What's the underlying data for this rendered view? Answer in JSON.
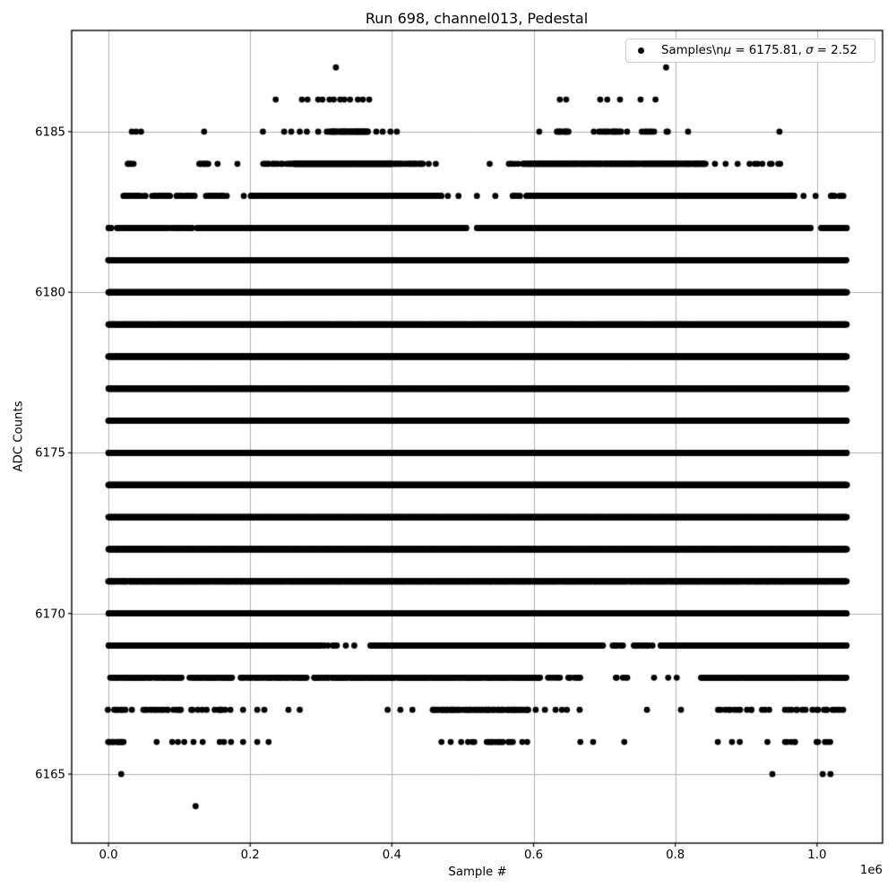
{
  "chart_data": {
    "type": "scatter",
    "title": "Run 698, channel013, Pedestal",
    "xlabel": "Sample #",
    "ylabel": "ADC Counts",
    "offset_text": "1e6",
    "legend": {
      "label": "Samples\\nμ = 6175.81, σ = 2.52",
      "marker": "point",
      "marker_color": "#000000",
      "position": "upper right"
    },
    "stats": {
      "mu": 6175.81,
      "sigma": 2.52
    },
    "marker_color": "#000000",
    "grid": true,
    "grid_color": "#b0b0b0",
    "xlim": [
      -51900,
      1092500
    ],
    "ylim": [
      6162.85,
      6188.15
    ],
    "x_data_range": [
      0,
      1042000
    ],
    "xticks": [
      {
        "label": "0.0",
        "value": 0
      },
      {
        "label": "0.2",
        "value": 200000
      },
      {
        "label": "0.4",
        "value": 400000
      },
      {
        "label": "0.6",
        "value": 600000
      },
      {
        "label": "0.8",
        "value": 800000
      },
      {
        "label": "1.0",
        "value": 1000000
      }
    ],
    "yticks": [
      {
        "label": "6165",
        "value": 6165
      },
      {
        "label": "6170",
        "value": 6170
      },
      {
        "label": "6175",
        "value": 6175
      },
      {
        "label": "6180",
        "value": 6180
      },
      {
        "label": "6185",
        "value": 6185
      }
    ],
    "bands_format": "ADC-count rows of ~1M samples; segments=[x_start,x_end,density 0-1], points=isolated sample x positions",
    "bands": [
      {
        "adc": 6187,
        "points": [
          321000,
          787000
        ]
      },
      {
        "adc": 6186,
        "points": [
          236000,
          273000,
          281000,
          296000,
          302000,
          312000,
          318000,
          327000,
          333000,
          341000,
          352000,
          359000,
          368000,
          637000,
          646000,
          694000,
          704000,
          722000,
          751000,
          772000
        ]
      },
      {
        "adc": 6185,
        "segments": [
          [
            308000,
            368000,
            0.85
          ],
          [
            633000,
            650000,
            0.7
          ],
          [
            693000,
            735000,
            0.7
          ],
          [
            753000,
            774000,
            0.7
          ],
          [
            782000,
            792000,
            0.7
          ]
        ],
        "points": [
          33000,
          39000,
          46000,
          135000,
          218000,
          248000,
          258000,
          270000,
          280000,
          296000,
          378000,
          387000,
          398000,
          407000,
          608000,
          685000,
          818000,
          947000
        ]
      },
      {
        "adc": 6184,
        "segments": [
          [
            27000,
            35000,
            0.8
          ],
          [
            128000,
            141000,
            0.8
          ],
          [
            218000,
            262000,
            0.7
          ],
          [
            262000,
            400000,
            1
          ],
          [
            400000,
            445000,
            0.8
          ],
          [
            565000,
            579000,
            0.55
          ],
          [
            585000,
            843000,
            0.92
          ],
          [
            903000,
            924000,
            0.6
          ],
          [
            934000,
            951000,
            0.65
          ]
        ],
        "points": [
          154000,
          182000,
          452000,
          462000,
          538000,
          856000,
          871000,
          888000
        ]
      },
      {
        "adc": 6183,
        "segments": [
          [
            20000,
            53000,
            0.8
          ],
          [
            62000,
            87000,
            0.8
          ],
          [
            96000,
            123000,
            0.8
          ],
          [
            138000,
            163000,
            0.8
          ],
          [
            201000,
            470000,
            1
          ],
          [
            570000,
            581000,
            0.7
          ],
          [
            590000,
            968000,
            1
          ],
          [
            1019000,
            1039000,
            0.7
          ]
        ],
        "points": [
          167000,
          191000,
          479000,
          494000,
          520000,
          546000,
          981000,
          998000
        ]
      },
      {
        "adc": 6182,
        "segments": [
          [
            0,
            4000,
            1
          ],
          [
            12000,
            90000,
            0.8
          ],
          [
            94000,
            120000,
            0.85
          ],
          [
            125000,
            195000,
            0.85
          ],
          [
            197000,
            505000,
            1
          ],
          [
            520000,
            991000,
            1
          ],
          [
            1006000,
            1042000,
            1
          ]
        ]
      },
      {
        "adc": 6181,
        "segments": [
          [
            0,
            1042000,
            0.95
          ]
        ]
      },
      {
        "adc": 6180,
        "segments": [
          [
            0,
            1042000,
            1
          ]
        ]
      },
      {
        "adc": 6179,
        "segments": [
          [
            0,
            1042000,
            1
          ]
        ]
      },
      {
        "adc": 6178,
        "segments": [
          [
            0,
            1042000,
            1
          ]
        ]
      },
      {
        "adc": 6177,
        "segments": [
          [
            0,
            1042000,
            1
          ]
        ]
      },
      {
        "adc": 6176,
        "segments": [
          [
            0,
            1042000,
            1
          ]
        ]
      },
      {
        "adc": 6175,
        "segments": [
          [
            0,
            1042000,
            1
          ]
        ]
      },
      {
        "adc": 6174,
        "segments": [
          [
            0,
            1042000,
            1
          ]
        ]
      },
      {
        "adc": 6173,
        "segments": [
          [
            0,
            1042000,
            1
          ]
        ]
      },
      {
        "adc": 6172,
        "segments": [
          [
            0,
            1042000,
            1
          ]
        ]
      },
      {
        "adc": 6171,
        "segments": [
          [
            0,
            1042000,
            0.97
          ]
        ]
      },
      {
        "adc": 6170,
        "segments": [
          [
            0,
            1042000,
            0.96
          ]
        ]
      },
      {
        "adc": 6169,
        "segments": [
          [
            0,
            300000,
            0.9
          ],
          [
            305000,
            330000,
            0.55
          ],
          [
            370000,
            698000,
            0.92
          ],
          [
            709000,
            727000,
            0.6
          ],
          [
            741000,
            770000,
            0.6
          ],
          [
            779000,
            1042000,
            0.9
          ]
        ],
        "points": [
          335000,
          347000,
          480000,
          510000
        ]
      },
      {
        "adc": 6168,
        "segments": [
          [
            0,
            105000,
            0.8
          ],
          [
            115000,
            175000,
            0.8
          ],
          [
            185000,
            280000,
            0.75
          ],
          [
            290000,
            610000,
            0.85
          ],
          [
            620000,
            640000,
            0.55
          ],
          [
            648000,
            668000,
            0.55
          ],
          [
            704000,
            732000,
            0.55
          ],
          [
            836000,
            1042000,
            0.88
          ]
        ],
        "points": [
          445000,
          770000,
          790000,
          802000
        ]
      },
      {
        "adc": 6167,
        "segments": [
          [
            0,
            25000,
            0.7
          ],
          [
            50000,
            105000,
            0.55
          ],
          [
            115000,
            175000,
            0.55
          ],
          [
            458000,
            593000,
            0.75
          ],
          [
            861000,
            909000,
            0.5
          ],
          [
            922000,
            972000,
            0.5
          ],
          [
            976000,
            1042000,
            0.55
          ]
        ],
        "points": [
          33000,
          190000,
          210000,
          220000,
          254000,
          270000,
          394000,
          412000,
          429000,
          603000,
          616000,
          631000,
          640000,
          647000,
          665000,
          760000,
          808000
        ]
      },
      {
        "adc": 6166,
        "segments": [
          [
            0,
            21000,
            0.8
          ],
          [
            496000,
            521000,
            0.6
          ],
          [
            534000,
            572000,
            0.6
          ],
          [
            955000,
            972000,
            0.5
          ],
          [
            1000000,
            1022000,
            0.5
          ]
        ],
        "points": [
          68000,
          90000,
          98000,
          107000,
          120000,
          133000,
          157000,
          163000,
          173000,
          190000,
          210000,
          226000,
          470000,
          483000,
          584000,
          591000,
          666000,
          684000,
          728000,
          860000,
          880000,
          891000,
          930000
        ]
      },
      {
        "adc": 6165,
        "points": [
          18000,
          937000,
          1008000,
          1019000
        ]
      },
      {
        "adc": 6164,
        "points": [
          123000
        ]
      }
    ]
  }
}
